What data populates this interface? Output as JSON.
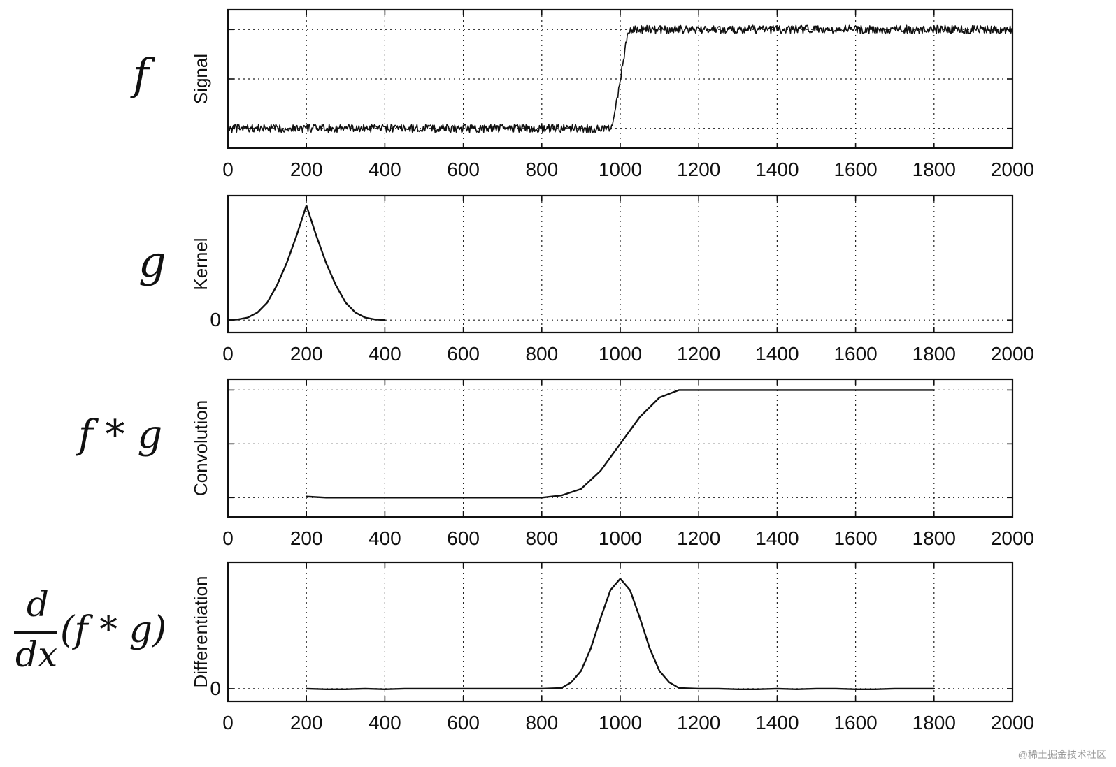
{
  "panel_labels": {
    "signal": "f",
    "kernel": "g",
    "convolution": "f * g",
    "differentiation_numerator": "d",
    "differentiation_denominator": "dx",
    "differentiation_expression": "(f * g)"
  },
  "watermark": "@稀土掘金技术社区",
  "chart_data": [
    {
      "type": "line",
      "panel": "Signal",
      "ylabel": "Signal",
      "xlabel": "",
      "xlim": [
        0,
        2000
      ],
      "ylim": [
        -0.2,
        1.2
      ],
      "xticks": [
        0,
        200,
        400,
        600,
        800,
        1000,
        1200,
        1400,
        1600,
        1800,
        2000
      ],
      "yticks": [
        0,
        0.5,
        1
      ],
      "ytick_labels": [
        "",
        "",
        ""
      ],
      "grid": true,
      "noisy": true,
      "series": [
        {
          "x": [
            0,
            980,
            1020,
            2000
          ],
          "y": [
            0,
            0,
            1,
            1
          ]
        }
      ]
    },
    {
      "type": "line",
      "panel": "Kernel",
      "ylabel": "Kernel",
      "xlabel": "",
      "xlim": [
        0,
        2000
      ],
      "ylim": [
        -0.1,
        1.0
      ],
      "xticks": [
        0,
        200,
        400,
        600,
        800,
        1000,
        1200,
        1400,
        1600,
        1800,
        2000
      ],
      "yticks": [
        0
      ],
      "ytick_labels": [
        "0"
      ],
      "grid": true,
      "series": [
        {
          "x": [
            0,
            25,
            50,
            75,
            100,
            125,
            150,
            175,
            200,
            225,
            250,
            275,
            300,
            325,
            350,
            375,
            400
          ],
          "y": [
            0.0,
            0.005,
            0.02,
            0.06,
            0.14,
            0.28,
            0.46,
            0.68,
            0.92,
            0.68,
            0.46,
            0.28,
            0.14,
            0.06,
            0.02,
            0.005,
            0.0
          ]
        }
      ]
    },
    {
      "type": "line",
      "panel": "Convolution",
      "ylabel": "Convolution",
      "xlabel": "",
      "xlim": [
        0,
        2000
      ],
      "ylim": [
        -0.18,
        1.1
      ],
      "xticks": [
        0,
        200,
        400,
        600,
        800,
        1000,
        1200,
        1400,
        1600,
        1800,
        2000
      ],
      "xtick_labels": [
        "0",
        "200",
        "400",
        "600",
        "800",
        "1000",
        "1200",
        "1400",
        "1600",
        "1800",
        "2000"
      ],
      "yticks": [
        0,
        0.5,
        1
      ],
      "ytick_labels": [
        "",
        "",
        ""
      ],
      "grid": true,
      "series": [
        {
          "x": [
            200,
            250,
            800,
            850,
            900,
            950,
            1000,
            1050,
            1100,
            1150,
            1200,
            1800
          ],
          "y": [
            0.01,
            0.0,
            0.0,
            0.02,
            0.08,
            0.25,
            0.5,
            0.75,
            0.93,
            1.0,
            1.0,
            1.0
          ]
        }
      ]
    },
    {
      "type": "line",
      "panel": "Differentiation",
      "ylabel": "Differentiation",
      "xlabel": "",
      "xlim": [
        0,
        2000
      ],
      "ylim": [
        -0.1,
        1.0
      ],
      "xticks": [
        0,
        200,
        400,
        600,
        800,
        1000,
        1200,
        1400,
        1600,
        1800,
        2000
      ],
      "xtick_labels": [
        "0",
        "200",
        "400",
        "600",
        "800",
        "1000",
        "1200",
        "1400",
        "1600",
        "1800",
        "2000"
      ],
      "yticks": [
        0
      ],
      "ytick_labels": [
        "0"
      ],
      "grid": true,
      "series": [
        {
          "x": [
            200,
            250,
            300,
            350,
            400,
            450,
            500,
            550,
            600,
            650,
            700,
            750,
            800,
            850,
            875,
            900,
            925,
            950,
            975,
            1000,
            1025,
            1050,
            1075,
            1100,
            1125,
            1150,
            1200,
            1250,
            1300,
            1350,
            1400,
            1450,
            1500,
            1550,
            1600,
            1650,
            1700,
            1750,
            1800
          ],
          "y": [
            0.0,
            -0.005,
            -0.005,
            0.0,
            -0.005,
            0.0,
            0.0,
            0.0,
            0.0,
            0.0,
            0.0,
            0.0,
            0.0,
            0.005,
            0.05,
            0.14,
            0.32,
            0.56,
            0.78,
            0.87,
            0.78,
            0.56,
            0.32,
            0.14,
            0.05,
            0.005,
            0.0,
            0.0,
            -0.005,
            -0.005,
            0.0,
            -0.005,
            0.0,
            0.0,
            -0.005,
            -0.005,
            0.0,
            0.0,
            0.0
          ]
        }
      ]
    }
  ]
}
